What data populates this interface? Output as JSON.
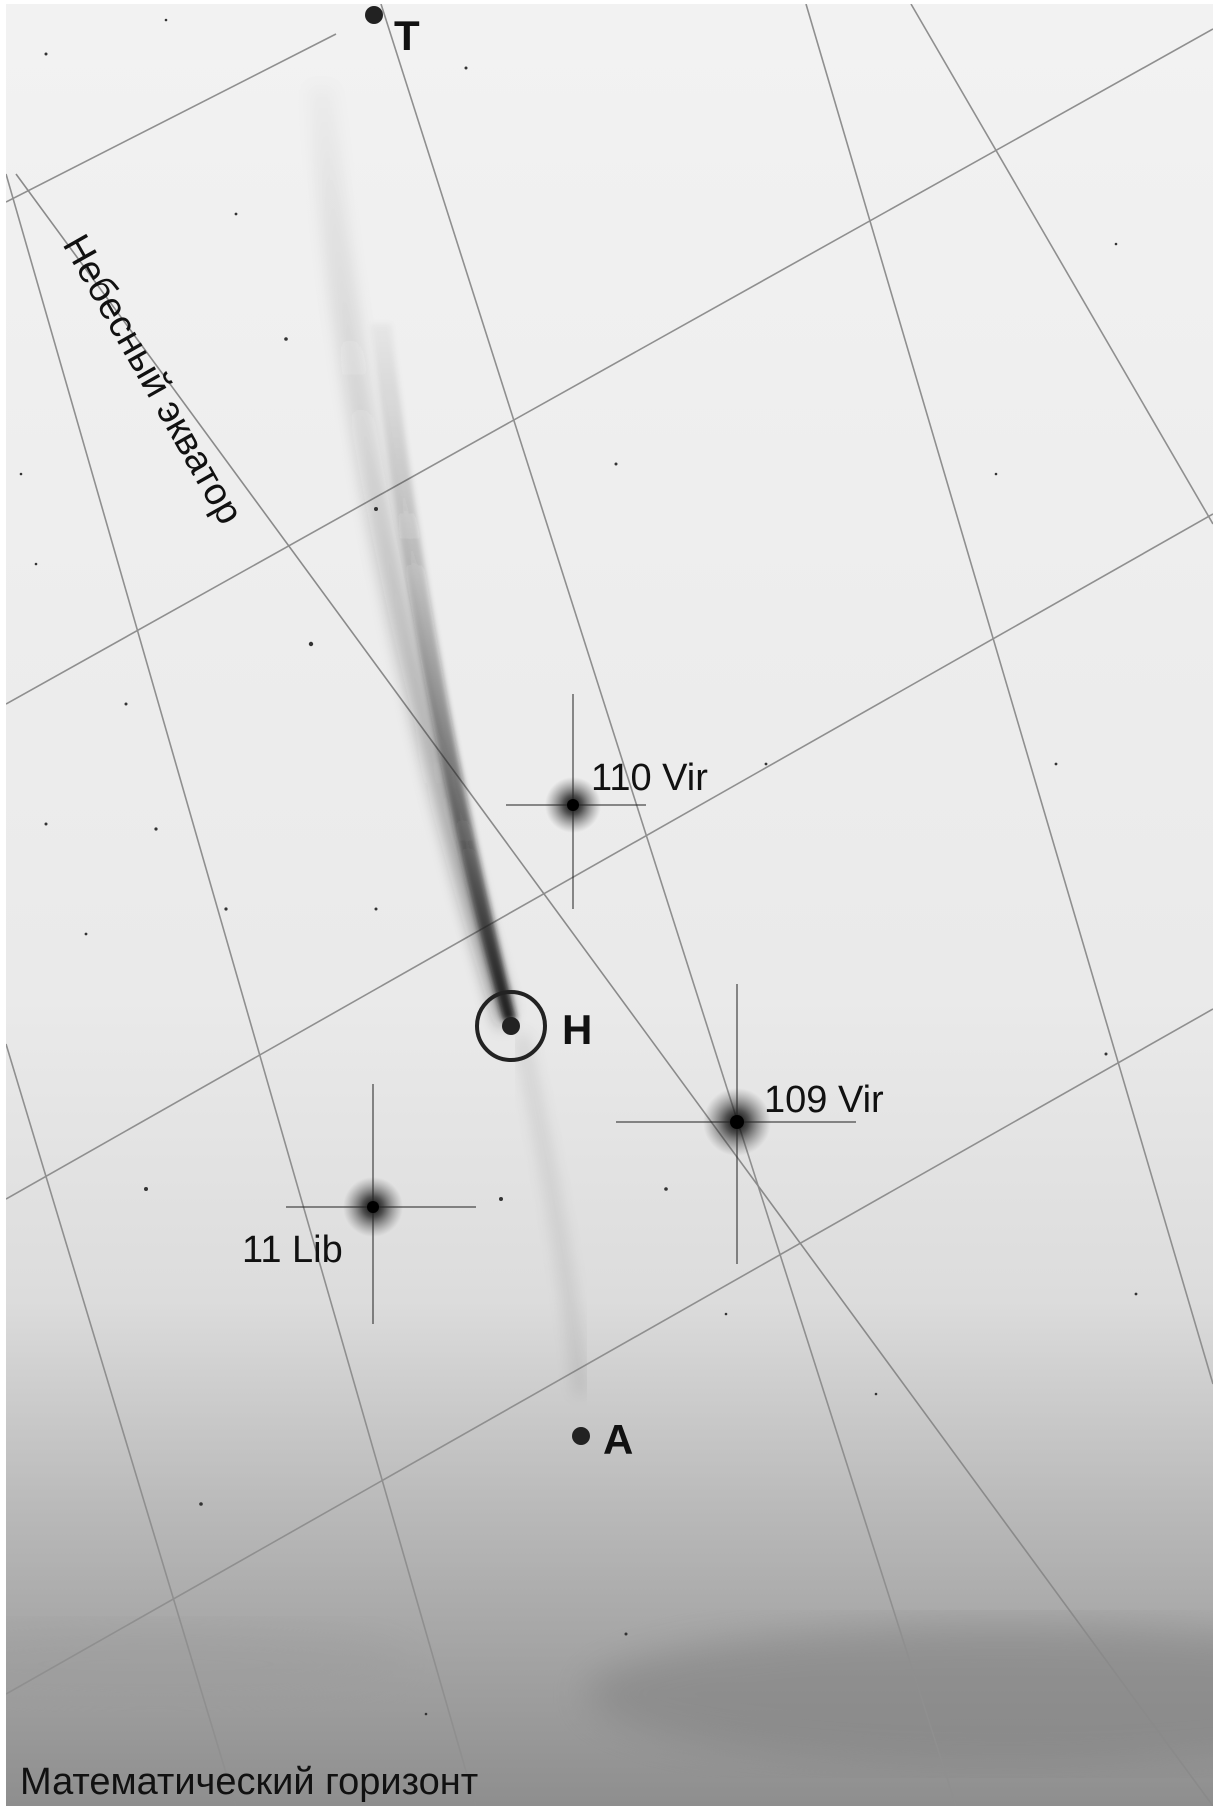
{
  "image": {
    "description_labels": {
      "celestial_equator": "Небесный экватор",
      "math_horizon": "Математический горизонт"
    },
    "points": {
      "T": "Т",
      "H": "Н",
      "A": "А"
    },
    "stars": {
      "s110": "110 Vir",
      "s109": "109 Vir",
      "s11": "11 Lib"
    },
    "colors": {
      "sky_background": "#ebebeb",
      "ground_dark": "#8a8a8a",
      "grid_lines": "#9a9a9a",
      "comet_tail": "#1a1a1a",
      "text": "#111111"
    }
  }
}
